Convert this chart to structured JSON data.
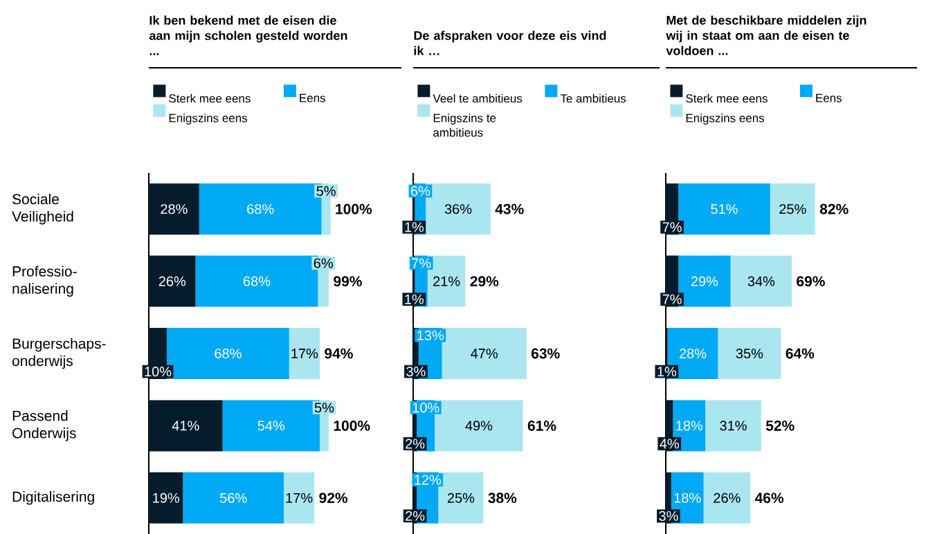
{
  "chart_data": [
    {
      "type": "bar",
      "orientation": "horizontal",
      "stacked": true,
      "title": "Ik ben bekend met de eisen die aan mijn scholen gesteld worden ...",
      "legend": "top",
      "tick_labels": "y",
      "categories": [
        "Sociale Veiligheid",
        "Professio-nalisering",
        "Burgerschaps-onderwijs",
        "Passend Onderwijs",
        "Digitalisering"
      ],
      "series": [
        {
          "name": "Sterk mee eens",
          "color": "#051c2c",
          "values": [
            28,
            26,
            10,
            41,
            19
          ],
          "value_labels": [
            "28%",
            "26%",
            "10%",
            "41%",
            "19%"
          ]
        },
        {
          "name": "Eens",
          "color": "#00a9f4",
          "values": [
            68,
            68,
            68,
            54,
            56
          ],
          "value_labels": [
            "68%",
            "68%",
            "68%",
            "54%",
            "56%"
          ]
        },
        {
          "name": "Enigszins eens",
          "color": "#aae6f0",
          "values": [
            5,
            6,
            17,
            5,
            17
          ],
          "value_labels": [
            "5%",
            "6%",
            "17%",
            "5%",
            "17%"
          ]
        }
      ],
      "totals": [
        "100%",
        "99%",
        "94%",
        "100%",
        "92%"
      ]
    },
    {
      "type": "bar",
      "orientation": "horizontal",
      "stacked": true,
      "title": "De afspraken voor deze eis vind ik …",
      "legend": "top",
      "tick_labels": false,
      "categories": [
        null,
        null,
        null,
        null,
        null
      ],
      "series": [
        {
          "name": "Veel te ambitieus",
          "color": "#051c2c",
          "values": [
            1,
            1,
            3,
            2,
            2
          ],
          "value_labels": [
            "1%",
            "1%",
            "3%",
            "2%",
            "2%"
          ]
        },
        {
          "name": "Te ambitieus",
          "color": "#00a9f4",
          "values": [
            6,
            7,
            13,
            10,
            12
          ],
          "value_labels": [
            "6%",
            "7%",
            "13%",
            "10%",
            "12%"
          ]
        },
        {
          "name": "Enigszins te ambitieus",
          "color": "#aae6f0",
          "values": [
            36,
            21,
            47,
            49,
            25
          ],
          "value_labels": [
            "36%",
            "21%",
            "47%",
            "49%",
            "25%"
          ]
        }
      ],
      "totals": [
        "43%",
        "29%",
        "63%",
        "61%",
        "38%"
      ]
    },
    {
      "type": "bar",
      "orientation": "horizontal",
      "stacked": true,
      "title": "Met de beschikbare middelen zijn wij in staat om aan de eisen te voldoen ...",
      "legend": "top",
      "tick_labels": false,
      "categories": [
        null,
        null,
        null,
        null,
        null
      ],
      "series": [
        {
          "name": "Sterk mee eens",
          "color": "#051c2c",
          "values": [
            7,
            7,
            1,
            4,
            3
          ],
          "value_labels": [
            "7%",
            "7%",
            "1%",
            "4%",
            "3%"
          ]
        },
        {
          "name": "Eens",
          "color": "#00a9f4",
          "values": [
            51,
            29,
            28,
            18,
            18
          ],
          "value_labels": [
            "51%",
            "29%",
            "28%",
            "18%",
            "18%"
          ]
        },
        {
          "name": "Enigszins eens",
          "color": "#aae6f0",
          "values": [
            25,
            34,
            35,
            31,
            26
          ],
          "value_labels": [
            "25%",
            "34%",
            "35%",
            "31%",
            "26%"
          ]
        }
      ],
      "totals": [
        "82%",
        "69%",
        "64%",
        "52%",
        "46%"
      ]
    }
  ]
}
